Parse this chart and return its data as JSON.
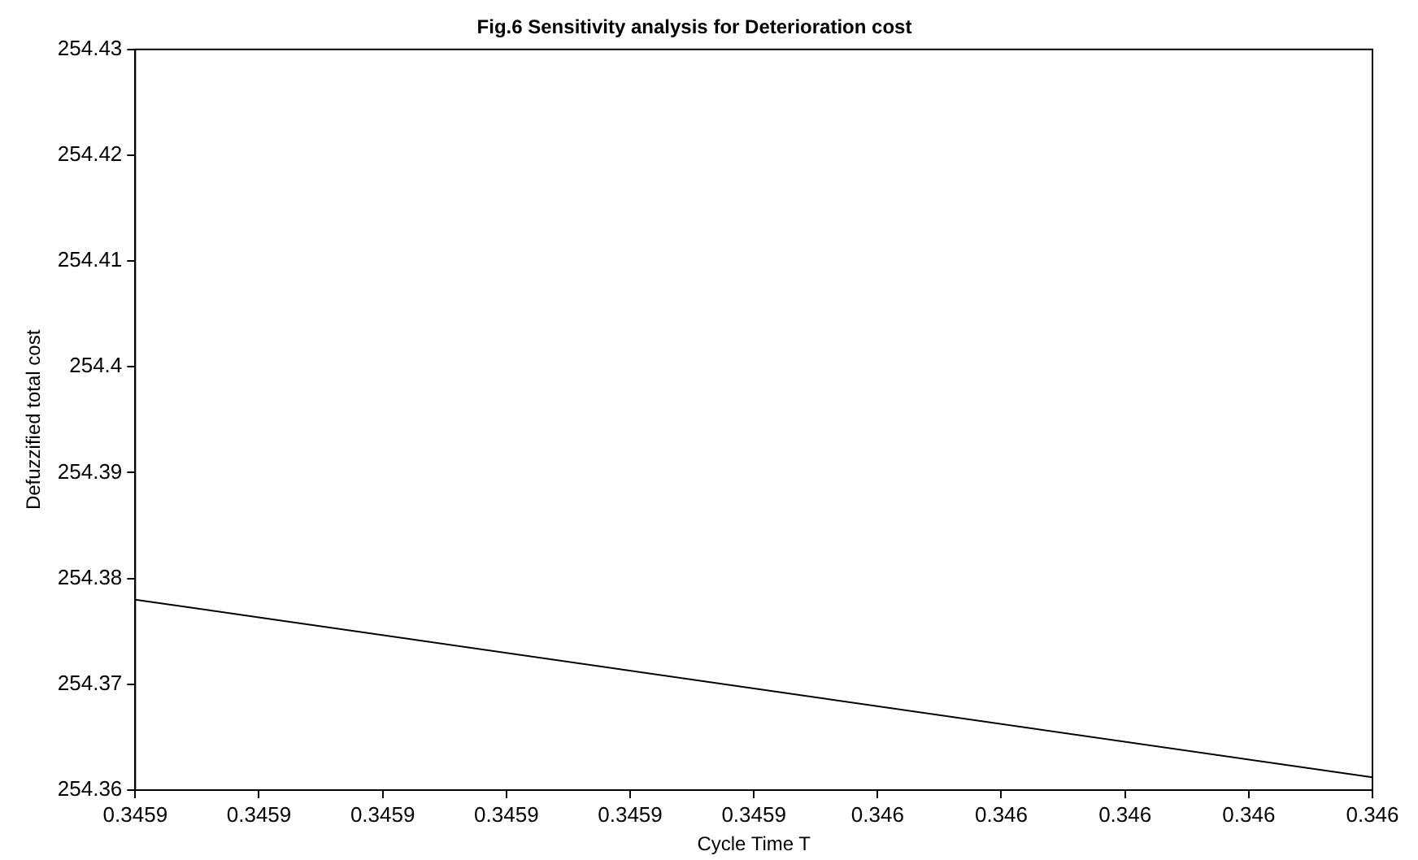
{
  "chart_data": {
    "type": "line",
    "title": "Fig.6 Sensitivity analysis for Deterioration cost",
    "xlabel": "Cycle Time T",
    "ylabel": "Defuzzified total cost",
    "x": [
      0.34589,
      0.34599
    ],
    "series": [
      {
        "color": "#000000",
        "values": [
          254.378,
          254.3612
        ]
      }
    ],
    "xlim": [
      0.34589,
      0.34599
    ],
    "xticks": [
      {
        "value": 0.34589,
        "label": "0.3459"
      },
      {
        "value": 0.3459,
        "label": "0.3459"
      },
      {
        "value": 0.34591,
        "label": "0.3459"
      },
      {
        "value": 0.34592,
        "label": "0.3459"
      },
      {
        "value": 0.34593,
        "label": "0.3459"
      },
      {
        "value": 0.34594,
        "label": "0.3459"
      },
      {
        "value": 0.34595,
        "label": "0.346"
      },
      {
        "value": 0.34596,
        "label": "0.346"
      },
      {
        "value": 0.34597,
        "label": "0.346"
      },
      {
        "value": 0.34598,
        "label": "0.346"
      },
      {
        "value": 0.34599,
        "label": "0.346"
      }
    ],
    "ylim": [
      254.36,
      254.43
    ],
    "yticks": [
      254.36,
      254.37,
      254.38,
      254.39,
      254.4,
      254.41,
      254.42,
      254.43
    ],
    "grid": false,
    "legend": false,
    "marker": "none",
    "line_style": "solid"
  }
}
